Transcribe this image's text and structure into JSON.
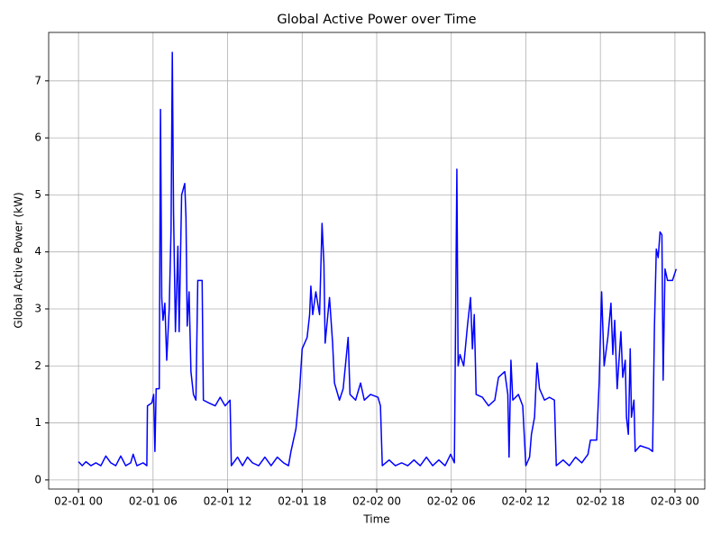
{
  "chart_data": {
    "type": "line",
    "title": "Global Active Power over Time",
    "xlabel": "Time",
    "ylabel": "Global Active Power (kW)",
    "series": [
      {
        "name": "Global Active Power",
        "color": "#0000ff",
        "x": [
          0,
          0.3,
          0.6,
          1.0,
          1.4,
          1.8,
          2.2,
          2.6,
          3.0,
          3.4,
          3.8,
          4.2,
          4.4,
          4.7,
          5.2,
          5.5,
          5.55,
          5.9,
          6.05,
          6.15,
          6.25,
          6.5,
          6.6,
          6.7,
          6.8,
          6.95,
          7.1,
          7.3,
          7.45,
          7.55,
          7.65,
          7.8,
          8.0,
          8.1,
          8.3,
          8.55,
          8.65,
          8.75,
          8.9,
          9.05,
          9.25,
          9.45,
          9.6,
          9.95,
          10.05,
          10.5,
          11.0,
          11.4,
          11.8,
          12.2,
          12.3,
          12.8,
          13.2,
          13.6,
          14.0,
          14.5,
          15.0,
          15.5,
          16.0,
          16.5,
          16.9,
          17.1,
          17.5,
          17.8,
          18.0,
          18.4,
          18.6,
          18.7,
          18.85,
          19.1,
          19.4,
          19.6,
          19.75,
          19.85,
          20.2,
          20.45,
          20.6,
          21.0,
          21.3,
          21.7,
          21.85,
          22.3,
          22.7,
          23.0,
          23.5,
          24.1,
          24.3,
          24.45,
          25.0,
          25.5,
          26.0,
          26.5,
          27.0,
          27.5,
          28.0,
          28.5,
          29.0,
          29.5,
          29.95,
          30.25,
          30.45,
          30.55,
          30.7,
          31.0,
          31.3,
          31.55,
          31.7,
          31.85,
          32.0,
          32.5,
          33.0,
          33.5,
          33.8,
          34.3,
          34.55,
          34.65,
          34.8,
          34.95,
          35.4,
          35.75,
          36.0,
          36.3,
          36.45,
          36.7,
          36.9,
          37.1,
          37.5,
          37.9,
          38.3,
          38.45,
          39.0,
          39.5,
          40.0,
          40.5,
          41.0,
          41.2,
          41.7,
          41.9,
          42.1,
          42.3,
          42.6,
          42.85,
          43.0,
          43.15,
          43.35,
          43.65,
          43.8,
          44.0,
          44.1,
          44.25,
          44.4,
          44.5,
          44.7,
          44.8,
          45.2,
          45.9,
          46.2,
          46.35,
          46.5,
          46.65,
          46.8,
          46.95,
          47.05,
          47.2,
          47.4,
          47.8,
          48.1
        ],
        "values": [
          0.32,
          0.25,
          0.32,
          0.25,
          0.3,
          0.25,
          0.42,
          0.3,
          0.25,
          0.42,
          0.25,
          0.3,
          0.45,
          0.25,
          0.3,
          0.25,
          1.3,
          1.35,
          1.5,
          0.5,
          1.6,
          1.6,
          6.5,
          3.2,
          2.8,
          3.1,
          2.1,
          3.0,
          4.4,
          7.5,
          4.7,
          2.6,
          4.1,
          2.6,
          5.0,
          5.2,
          4.6,
          2.7,
          3.3,
          1.9,
          1.5,
          1.4,
          3.5,
          3.5,
          1.4,
          1.35,
          1.3,
          1.45,
          1.3,
          1.4,
          0.25,
          0.4,
          0.25,
          0.4,
          0.3,
          0.25,
          0.4,
          0.25,
          0.4,
          0.3,
          0.25,
          0.5,
          0.9,
          1.6,
          2.3,
          2.5,
          2.9,
          3.4,
          2.9,
          3.3,
          2.9,
          4.5,
          3.8,
          2.4,
          3.2,
          2.4,
          1.7,
          1.4,
          1.6,
          2.5,
          1.5,
          1.4,
          1.7,
          1.4,
          1.5,
          1.45,
          1.3,
          0.25,
          0.35,
          0.25,
          0.3,
          0.25,
          0.35,
          0.25,
          0.4,
          0.25,
          0.35,
          0.25,
          0.45,
          0.3,
          5.45,
          2.0,
          2.2,
          2.0,
          2.7,
          3.2,
          2.3,
          2.9,
          1.5,
          1.45,
          1.3,
          1.4,
          1.8,
          1.9,
          1.5,
          0.4,
          2.1,
          1.4,
          1.5,
          1.3,
          0.25,
          0.4,
          0.8,
          1.1,
          2.05,
          1.6,
          1.4,
          1.45,
          1.4,
          0.25,
          0.35,
          0.25,
          0.4,
          0.3,
          0.45,
          0.7,
          0.7,
          1.7,
          3.3,
          2.0,
          2.5,
          3.1,
          2.2,
          2.8,
          1.6,
          2.6,
          1.8,
          2.1,
          1.1,
          0.8,
          2.3,
          1.1,
          1.4,
          0.5,
          0.6,
          0.55,
          0.5,
          2.7,
          4.05,
          3.9,
          4.35,
          4.3,
          1.75,
          3.7,
          3.5,
          3.5,
          3.7
        ]
      }
    ],
    "xlim": [
      -2.4,
      50.4
    ],
    "xticks": [
      {
        "value": 0,
        "label": "02-01 00"
      },
      {
        "value": 6,
        "label": "02-01 06"
      },
      {
        "value": 12,
        "label": "02-01 12"
      },
      {
        "value": 18,
        "label": "02-01 18"
      },
      {
        "value": 24,
        "label": "02-02 00"
      },
      {
        "value": 30,
        "label": "02-02 06"
      },
      {
        "value": 36,
        "label": "02-02 12"
      },
      {
        "value": 42,
        "label": "02-02 18"
      },
      {
        "value": 48,
        "label": "02-03 00"
      }
    ],
    "ylim": [
      -0.16,
      7.85
    ],
    "yticks": [
      0,
      1,
      2,
      3,
      4,
      5,
      6,
      7
    ],
    "grid": true
  }
}
